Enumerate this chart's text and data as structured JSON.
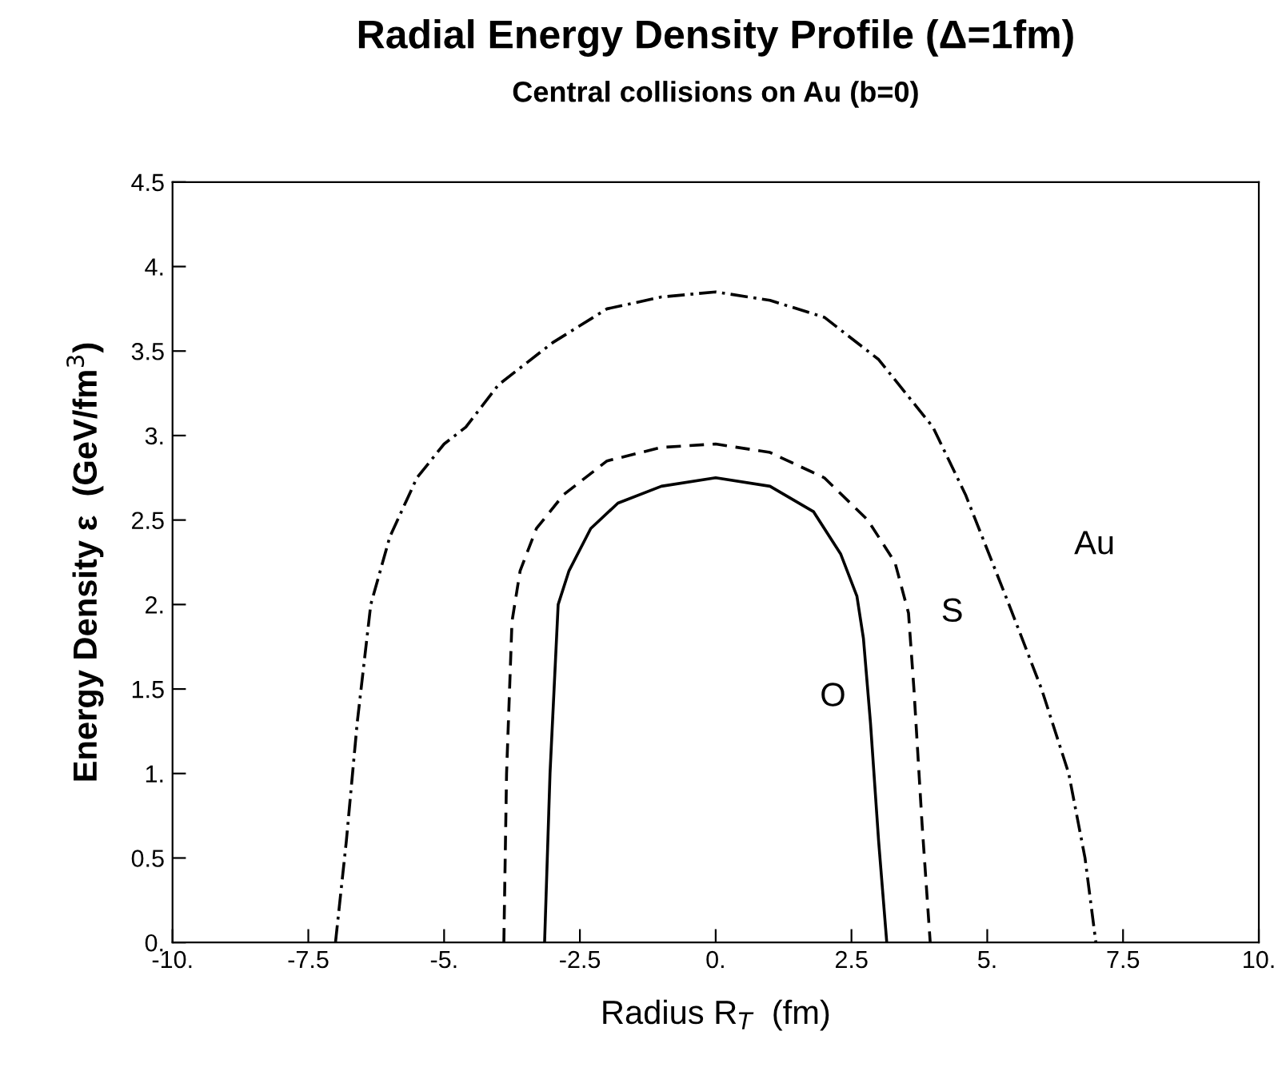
{
  "chart_data": {
    "type": "line",
    "title": "Radial Energy Density Profile (Δ=1fm)",
    "subtitle": "Central collisions on Au (b=0)",
    "xlabel": "Radius R$_{T}$  (fm)",
    "ylabel": "Energy Density ε  (GeV/fm$^{3}$)",
    "xlim": [
      -10,
      10
    ],
    "ylim": [
      0,
      4.5
    ],
    "xticks": [
      {
        "value": -10,
        "label": "-10."
      },
      -7.5,
      {
        "value": -5,
        "label": "-5."
      },
      -2.5,
      {
        "value": 0,
        "label": "0."
      },
      2.5,
      {
        "value": 5,
        "label": "5."
      },
      7.5,
      {
        "value": 10,
        "label": "10."
      }
    ],
    "yticks": [
      {
        "value": 0,
        "label": "0."
      },
      0.5,
      {
        "value": 1,
        "label": "1."
      },
      1.5,
      {
        "value": 2,
        "label": "2."
      },
      2.5,
      {
        "value": 3,
        "label": "3."
      },
      3.5,
      {
        "value": 4,
        "label": "4."
      },
      4.5
    ],
    "grid": false,
    "legend": false,
    "marker": "none",
    "series": [
      {
        "name": "Au",
        "color": "#000000",
        "line_style": "dashdot",
        "x": [
          -7.0,
          -6.8,
          -6.6,
          -6.35,
          -6.0,
          -5.5,
          -5.0,
          -4.6,
          -4.0,
          -3.0,
          -2.0,
          -1.0,
          0.0,
          1.0,
          2.0,
          3.0,
          4.0,
          4.6,
          5.4,
          6.0,
          6.5,
          6.8,
          7.0
        ],
        "values": [
          0.0,
          0.6,
          1.3,
          2.0,
          2.4,
          2.75,
          2.95,
          3.05,
          3.3,
          3.55,
          3.75,
          3.82,
          3.85,
          3.8,
          3.7,
          3.45,
          3.05,
          2.65,
          2.0,
          1.5,
          1.0,
          0.5,
          0.0
        ]
      },
      {
        "name": "S",
        "color": "#000000",
        "line_style": "dashed",
        "x": [
          -3.9,
          -3.85,
          -3.75,
          -3.6,
          -3.3,
          -2.8,
          -2.0,
          -1.0,
          0.0,
          1.0,
          2.0,
          2.8,
          3.3,
          3.55,
          3.65,
          3.8,
          3.95
        ],
        "values": [
          0.0,
          1.0,
          1.9,
          2.2,
          2.45,
          2.65,
          2.85,
          2.93,
          2.95,
          2.9,
          2.75,
          2.5,
          2.25,
          1.95,
          1.5,
          0.7,
          0.0
        ]
      },
      {
        "name": "O",
        "color": "#000000",
        "line_style": "solid",
        "x": [
          -3.15,
          -3.05,
          -2.9,
          -2.7,
          -2.3,
          -1.8,
          -1.0,
          0.0,
          1.0,
          1.8,
          2.3,
          2.6,
          2.72,
          2.85,
          3.0,
          3.15
        ],
        "values": [
          0.0,
          1.0,
          2.0,
          2.2,
          2.45,
          2.6,
          2.7,
          2.75,
          2.7,
          2.55,
          2.3,
          2.05,
          1.8,
          1.3,
          0.6,
          0.0
        ]
      }
    ]
  }
}
